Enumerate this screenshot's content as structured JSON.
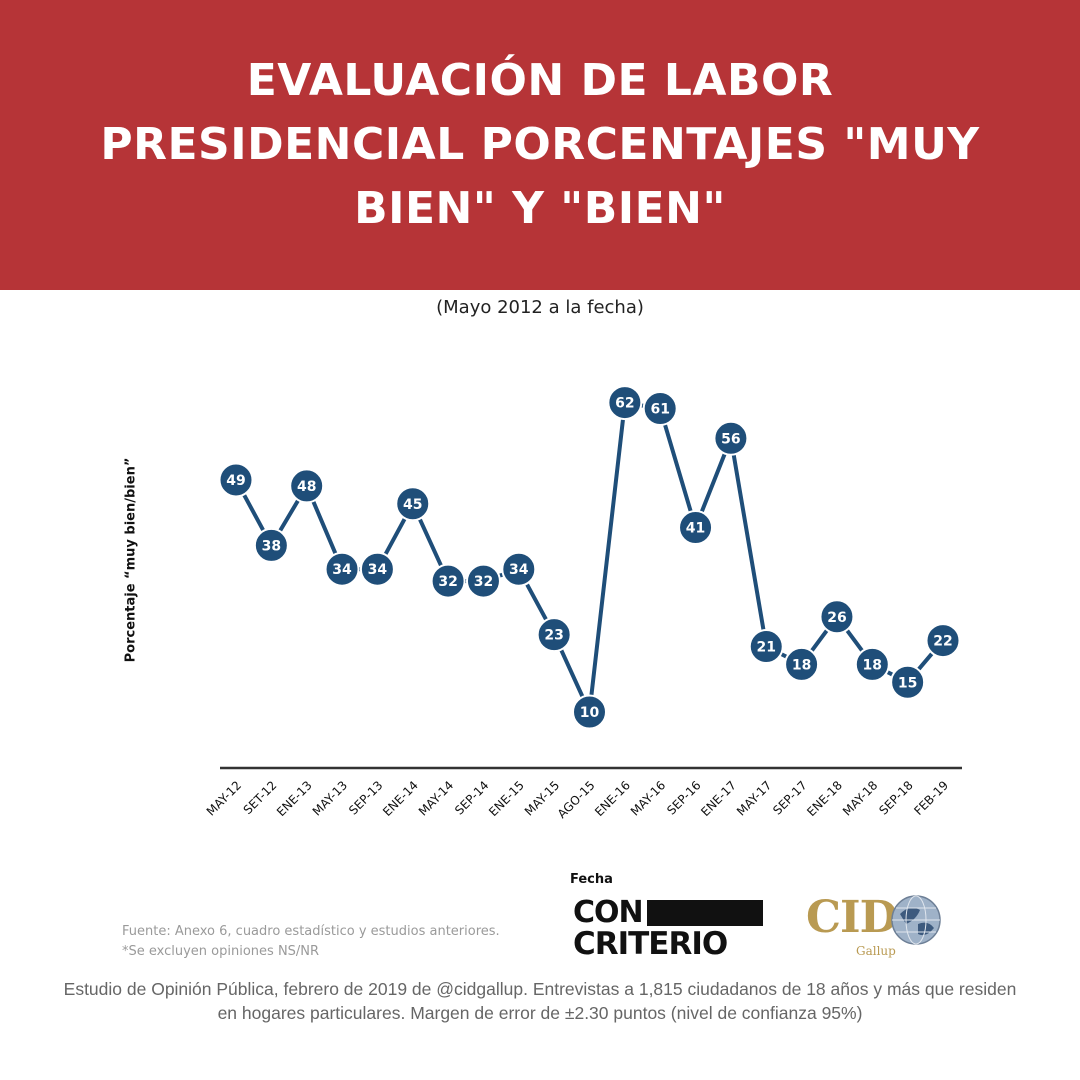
{
  "header": {
    "title": "EVALUACIÓN DE LABOR PRESIDENCIAL PORCENTAJES \"MUY BIEN\" Y \"BIEN\""
  },
  "colors": {
    "header_bg": "#b63437",
    "marker": "#1f4e79",
    "axis": "#333333"
  },
  "chart_data": {
    "type": "line",
    "title": "EVALUACIÓN DE LABOR PRESIDENCIAL PORCENTAJES \"MUY BIEN\" Y \"BIEN\"",
    "subtitle": "(Mayo 2012 a la fecha)",
    "ylabel": "Porcentaje “muy bien/bien”",
    "xlabel": "Fecha",
    "ylim": [
      0,
      70
    ],
    "grid": false,
    "legend": "none",
    "categories": [
      "MAY-12",
      "SET-12",
      "ENE-13",
      "MAY-13",
      "SEP-13",
      "ENE-14",
      "MAY-14",
      "SEP-14",
      "ENE-15",
      "MAY-15",
      "AGO-15",
      "ENE-16",
      "MAY-16",
      "SEP-16",
      "ENE-17",
      "MAY-17",
      "SEP-17",
      "ENE-18",
      "MAY-18",
      "SEP-18",
      "FEB-19"
    ],
    "series": [
      {
        "values": [
          49,
          38,
          48,
          34,
          34,
          45,
          32,
          32,
          34,
          23,
          10,
          62,
          61,
          41,
          56,
          21,
          18,
          26,
          18,
          15,
          22
        ]
      }
    ]
  },
  "source": {
    "line1": "Fuente: Anexo 6, cuadro estadístico y estudios anteriores.",
    "line2": "*Se excluyen opiniones NS/NR"
  },
  "logos": {
    "con_criterio_top": "CON",
    "con_criterio_bottom": "CRITERIO",
    "cid": "CID",
    "cid_sub": "Gallup"
  },
  "footnote": "Estudio de Opinión Pública, febrero de 2019 de @cidgallup.  Entrevistas a 1,815 ciudadanos de 18 años y más que residen en hogares particulares. Margen de error de ±2.30 puntos (nivel de confianza 95%)"
}
